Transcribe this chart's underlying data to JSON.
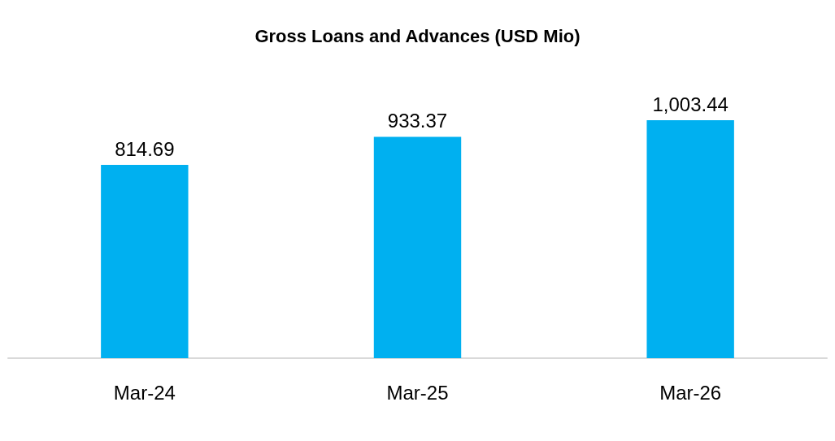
{
  "chart_data": {
    "type": "bar",
    "title": "Gross Loans and Advances (USD Mio)",
    "categories": [
      "Mar-24",
      "Mar-25",
      "Mar-26"
    ],
    "values": [
      814.69,
      933.37,
      1003.44
    ],
    "value_labels": [
      "814.69",
      "933.37",
      "1,003.44"
    ],
    "color": "#00b0f0"
  }
}
